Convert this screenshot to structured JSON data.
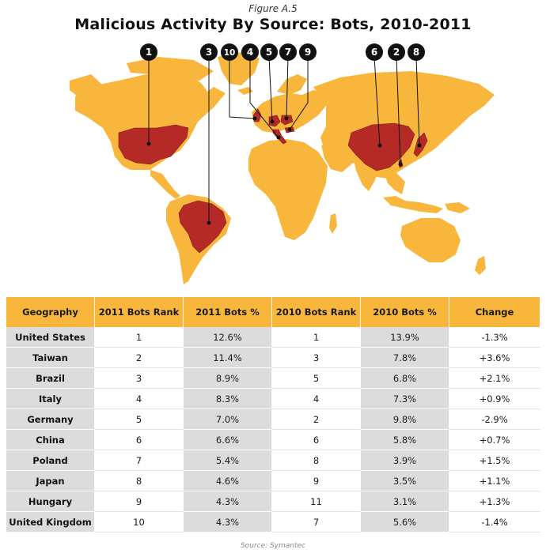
{
  "figure_label": "Figure A.5",
  "source": "Source: Symantec",
  "colors": {
    "land": "#f9b63c",
    "highlight": "#b52a27",
    "header": "#f9b63c",
    "shade": "#dcdcdc"
  },
  "chart_data": {
    "type": "table",
    "title": "Malicious Activity By Source: Bots, 2010-2011",
    "columns": [
      "Geography",
      "2011 Bots Rank",
      "2011 Bots %",
      "2010 Bots Rank",
      "2010 Bots %",
      "Change"
    ],
    "rows": [
      {
        "geography": "United States",
        "rank_2011": "1",
        "pct_2011": "12.6%",
        "rank_2010": "1",
        "pct_2010": "13.9%",
        "change": "-1.3%"
      },
      {
        "geography": "Taiwan",
        "rank_2011": "2",
        "pct_2011": "11.4%",
        "rank_2010": "3",
        "pct_2010": "7.8%",
        "change": "+3.6%"
      },
      {
        "geography": "Brazil",
        "rank_2011": "3",
        "pct_2011": "8.9%",
        "rank_2010": "5",
        "pct_2010": "6.8%",
        "change": "+2.1%"
      },
      {
        "geography": "Italy",
        "rank_2011": "4",
        "pct_2011": "8.3%",
        "rank_2010": "4",
        "pct_2010": "7.3%",
        "change": "+0.9%"
      },
      {
        "geography": "Germany",
        "rank_2011": "5",
        "pct_2011": "7.0%",
        "rank_2010": "2",
        "pct_2010": "9.8%",
        "change": "-2.9%"
      },
      {
        "geography": "China",
        "rank_2011": "6",
        "pct_2011": "6.6%",
        "rank_2010": "6",
        "pct_2010": "5.8%",
        "change": "+0.7%"
      },
      {
        "geography": "Poland",
        "rank_2011": "7",
        "pct_2011": "5.4%",
        "rank_2010": "8",
        "pct_2010": "3.9%",
        "change": "+1.5%"
      },
      {
        "geography": "Japan",
        "rank_2011": "8",
        "pct_2011": "4.6%",
        "rank_2010": "9",
        "pct_2010": "3.5%",
        "change": "+1.1%"
      },
      {
        "geography": "Hungary",
        "rank_2011": "9",
        "pct_2011": "4.3%",
        "rank_2010": "11",
        "pct_2010": "3.1%",
        "change": "+1.3%"
      },
      {
        "geography": "United Kingdom",
        "rank_2011": "10",
        "pct_2011": "4.3%",
        "rank_2010": "7",
        "pct_2010": "5.6%",
        "change": "-1.4%"
      }
    ],
    "map_markers": [
      "1",
      "3",
      "10",
      "4",
      "5",
      "7",
      "9",
      "6",
      "2",
      "8"
    ]
  }
}
